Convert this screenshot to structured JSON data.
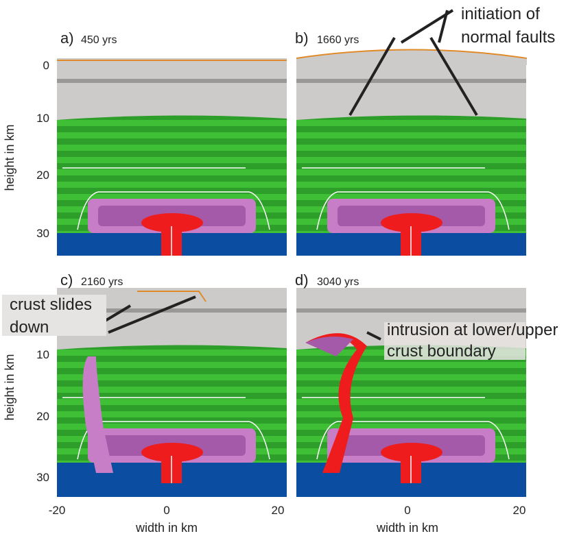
{
  "panels": [
    {
      "label": "a)",
      "time": "450 yrs"
    },
    {
      "label": "b)",
      "time": "1660 yrs"
    },
    {
      "label": "c)",
      "time": "2160 yrs"
    },
    {
      "label": "d)",
      "time": "3040 yrs"
    }
  ],
  "rows": [
    {
      "y_axis_label": "height in km",
      "yticks": [
        0,
        10,
        20,
        30
      ]
    },
    {
      "y_axis_label": "height in km",
      "yticks": [
        10,
        20,
        30
      ]
    }
  ],
  "columns": [
    {
      "x_axis_label": "width in km",
      "xticks": [
        -20,
        0,
        20
      ]
    },
    {
      "x_axis_label": "width in km",
      "xticks": [
        0,
        20
      ]
    }
  ],
  "annotations": {
    "faults": [
      "initiation of",
      "normal faults"
    ],
    "slides": [
      "crust slides",
      "down"
    ],
    "intrusion": [
      "intrusion at lower/upper",
      "crust boundary"
    ]
  }
}
